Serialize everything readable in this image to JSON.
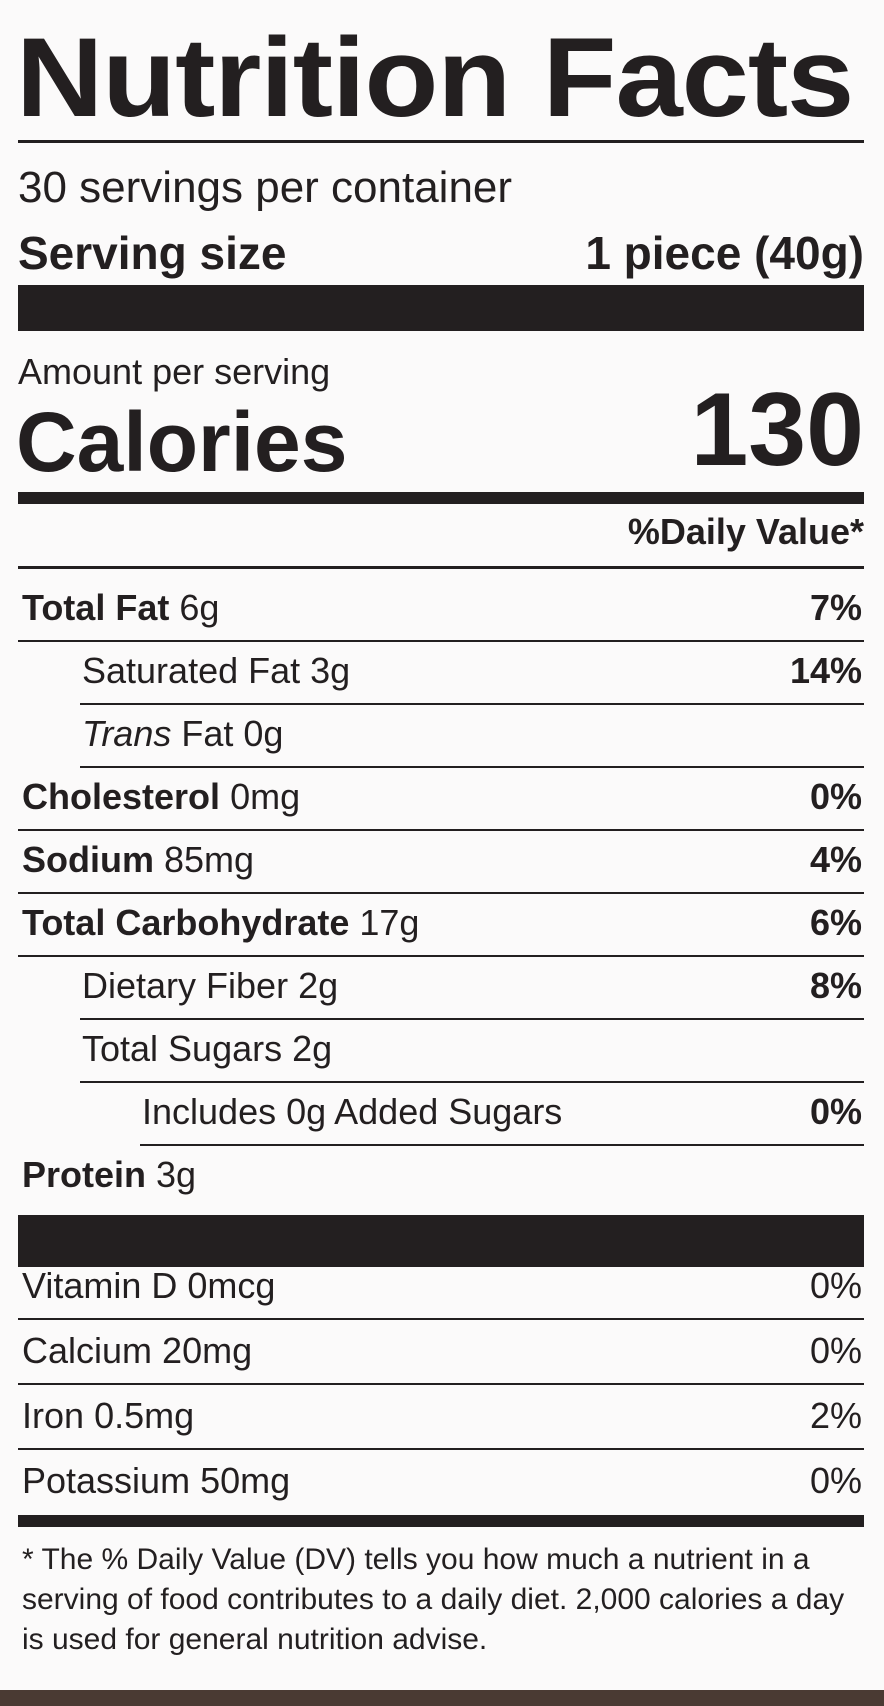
{
  "header": {
    "title": "Nutrition Facts",
    "servings": "30 servings per container",
    "serving_size_label": "Serving size",
    "serving_size_value": "1 piece (40g)"
  },
  "calories": {
    "amount_label": "Amount per serving",
    "label": "Calories",
    "value": "130"
  },
  "daily_value_header": "%Daily Value*",
  "nutrients": [
    {
      "name": "Total Fat",
      "amount": "6g",
      "dv": "7%"
    },
    {
      "name": "Saturated Fat",
      "amount": "3g",
      "dv": "14%"
    },
    {
      "name_italic": "Trans",
      "name": "Fat",
      "amount": "0g"
    },
    {
      "name": "Cholesterol",
      "amount": "0mg",
      "dv": "0%"
    },
    {
      "name": "Sodium",
      "amount": "85mg",
      "dv": "4%"
    },
    {
      "name": "Total Carbohydrate",
      "amount": "17g",
      "dv": "6%"
    },
    {
      "name": "Dietary Fiber",
      "amount": "2g",
      "dv": "8%"
    },
    {
      "name": "Total Sugars",
      "amount": "2g"
    },
    {
      "name": "Includes 0g Added Sugars",
      "dv": "0%"
    },
    {
      "name": "Protein",
      "amount": "3g"
    }
  ],
  "vitamins": [
    {
      "name": "Vitamin D",
      "amount": "0mcg",
      "dv": "0%"
    },
    {
      "name": "Calcium",
      "amount": "20mg",
      "dv": "0%"
    },
    {
      "name": "Iron",
      "amount": "0.5mg",
      "dv": "2%"
    },
    {
      "name": "Potassium",
      "amount": "50mg",
      "dv": "0%"
    }
  ],
  "footnote": "* The % Daily Value (DV) tells you how much a nutrient in a serving of food contributes to a daily diet. 2,000 calories a day is used for general nutrition advise."
}
